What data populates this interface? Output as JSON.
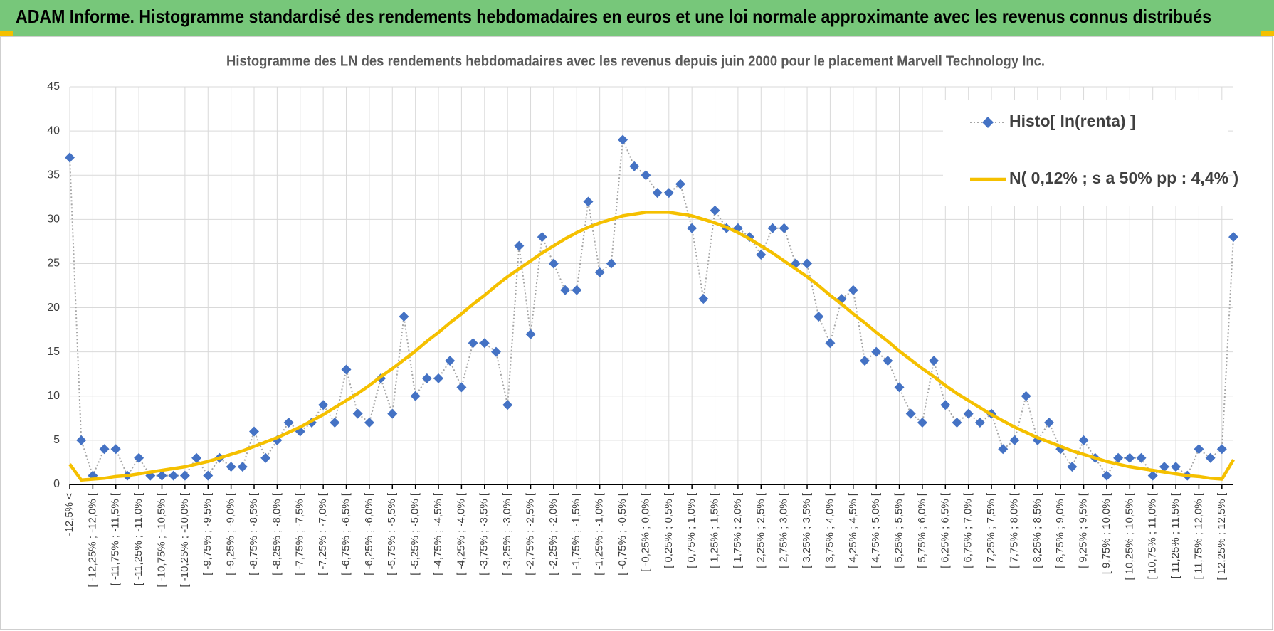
{
  "chart_data": {
    "type": "line",
    "title": "ADAM Informe. Histogramme standardisé des rendements hebdomadaires en euros et une loi normale approximante avec les revenus connus distribués",
    "subtitle": "Histogramme des LN des rendements hebdomadaires avec les revenus depuis juin 2000 pour le placement Marvell Technology Inc.",
    "categories": [
      "-12,5% <",
      null,
      "[ -12,25% ; -12,0% [",
      null,
      "[ -11,75% ; -11,5% [",
      null,
      "[ -11,25% ; -11,0% [",
      null,
      "[ -10,75% ; -10,5% [",
      null,
      "[ -10,25% ; -10,0% [",
      null,
      "[ -9,75% ; -9,5% [",
      null,
      "[ -9,25% ; -9,0% [",
      null,
      "[ -8,75% ; -8,5% [",
      null,
      "[ -8,25% ; -8,0% [",
      null,
      "[ -7,75% ; -7,5% [",
      null,
      "[ -7,25% ; -7,0% [",
      null,
      "[ -6,75% ; -6,5% [",
      null,
      "[ -6,25% ; -6,0% [",
      null,
      "[ -5,75% ; -5,5% [",
      null,
      "[ -5,25% ; -5,0% [",
      null,
      "[ -4,75% ; -4,5% [",
      null,
      "[ -4,25% ; -4,0% [",
      null,
      "[ -3,75% ; -3,5% [",
      null,
      "[ -3,25% ; -3,0% [",
      null,
      "[ -2,75% ; -2,5% [",
      null,
      "[ -2,25% ; -2,0% [",
      null,
      "[ -1,75% ; -1,5% [",
      null,
      "[ -1,25% ; -1,0% [",
      null,
      "[ -0,75% ; -0,5% [",
      null,
      "[ -0,25% ; 0,0% [",
      null,
      "[ 0,25% ; 0,5% [",
      null,
      "[ 0,75% ; 1,0% [",
      null,
      "[ 1,25% ; 1,5% [",
      null,
      "[ 1,75% ; 2,0% [",
      null,
      "[ 2,25% ; 2,5% [",
      null,
      "[ 2,75% ; 3,0% [",
      null,
      "[ 3,25% ; 3,5% [",
      null,
      "[ 3,75% ; 4,0% [",
      null,
      "[ 4,25% ; 4,5% [",
      null,
      "[ 4,75% ; 5,0% [",
      null,
      "[ 5,25% ; 5,5% [",
      null,
      "[ 5,75% ; 6,0% [",
      null,
      "[ 6,25% ; 6,5% [",
      null,
      "[ 6,75% ; 7,0% [",
      null,
      "[ 7,25% ; 7,5% [",
      null,
      "[ 7,75% ; 8,0% [",
      null,
      "[ 8,25% ; 8,5% [",
      null,
      "[ 8,75% ; 9,0% [",
      null,
      "[ 9,25% ; 9,5% [",
      null,
      "[ 9,75% ; 10,0% [",
      null,
      "[ 10,25% ; 10,5% [",
      null,
      "[ 10,75% ; 11,0% [",
      null,
      "[ 11,25% ; 11,5% [",
      null,
      "[ 11,75% ; 12,0% [",
      null,
      "[ 12,25% ; 12,5% [",
      null
    ],
    "series": [
      {
        "name": "Histo[ ln(renta) ]",
        "color": "#4472c4",
        "line_color": "#a6a6a6",
        "line_style": "dotted",
        "marker": "diamond",
        "values": [
          37,
          5,
          1,
          4,
          4,
          1,
          3,
          1,
          1,
          1,
          1,
          3,
          1,
          3,
          2,
          2,
          6,
          3,
          5,
          7,
          6,
          7,
          9,
          7,
          13,
          8,
          7,
          12,
          8,
          19,
          10,
          12,
          12,
          14,
          11,
          16,
          16,
          15,
          9,
          27,
          17,
          28,
          25,
          22,
          22,
          32,
          24,
          25,
          39,
          36,
          35,
          33,
          33,
          34,
          29,
          21,
          31,
          29,
          29,
          28,
          26,
          29,
          29,
          25,
          25,
          19,
          16,
          21,
          22,
          14,
          15,
          14,
          11,
          8,
          7,
          14,
          9,
          7,
          8,
          7,
          8,
          4,
          5,
          10,
          5,
          7,
          4,
          2,
          5,
          3,
          1,
          3,
          3,
          3,
          1,
          2,
          2,
          1,
          4,
          3,
          4,
          28
        ]
      },
      {
        "name": "N( 0,12% ; s a 50% pp : 4,4% )",
        "color": "#f5c000",
        "line_style": "solid",
        "marker": "none",
        "values": [
          2.3,
          0.5,
          0.6,
          0.7,
          0.9,
          1.0,
          1.2,
          1.4,
          1.6,
          1.8,
          2.0,
          2.3,
          2.6,
          3.0,
          3.4,
          3.8,
          4.3,
          4.8,
          5.3,
          5.9,
          6.5,
          7.2,
          7.9,
          8.7,
          9.5,
          10.3,
          11.2,
          12.2,
          13.1,
          14.1,
          15.1,
          16.2,
          17.2,
          18.3,
          19.3,
          20.4,
          21.4,
          22.5,
          23.5,
          24.4,
          25.3,
          26.2,
          27.0,
          27.8,
          28.5,
          29.1,
          29.6,
          30.0,
          30.4,
          30.6,
          30.8,
          30.8,
          30.8,
          30.6,
          30.4,
          30.0,
          29.6,
          29.1,
          28.5,
          27.8,
          27.0,
          26.2,
          25.3,
          24.4,
          23.5,
          22.5,
          21.4,
          20.4,
          19.3,
          18.3,
          17.2,
          16.2,
          15.1,
          14.1,
          13.1,
          12.2,
          11.2,
          10.3,
          9.5,
          8.7,
          7.9,
          7.2,
          6.5,
          5.9,
          5.3,
          4.8,
          4.3,
          3.8,
          3.4,
          3.0,
          2.6,
          2.3,
          2.0,
          1.8,
          1.6,
          1.4,
          1.2,
          1.0,
          0.9,
          0.7,
          0.6,
          2.8
        ]
      }
    ],
    "ylim": [
      0,
      45
    ],
    "yticks": [
      0,
      5,
      10,
      15,
      20,
      25,
      30,
      35,
      40,
      45
    ],
    "grid": true,
    "legend": "top-right"
  }
}
